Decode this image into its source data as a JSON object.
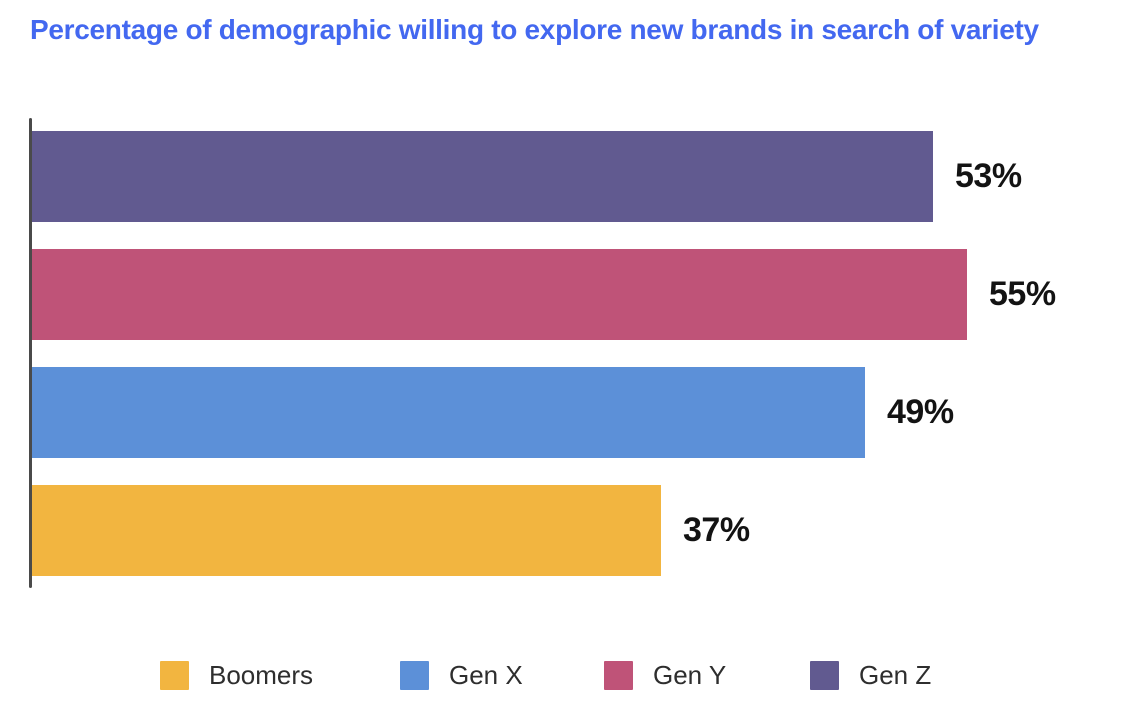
{
  "title": "Percentage of demographic willing to explore new brands in search of variety",
  "colors": {
    "title_blue": "#4368F0",
    "axis_gray": "#4a4a4a",
    "value_label_black": "#131313",
    "legend_text": "#2e2e2e"
  },
  "chart_data": {
    "type": "bar",
    "orientation": "horizontal",
    "title": "Percentage of demographic willing to explore new brands in search of variety",
    "categories": [
      "Gen Z",
      "Gen Y",
      "Gen X",
      "Boomers"
    ],
    "values": [
      53,
      55,
      49,
      37
    ],
    "value_labels": [
      "53%",
      "55%",
      "49%",
      "37%"
    ],
    "bar_colors": [
      "#615A90",
      "#BF5378",
      "#5C90D8",
      "#F2B540"
    ],
    "xlim": [
      0,
      65
    ],
    "grid": false,
    "value_label_position": "right-of-bar",
    "legend": {
      "position": "bottom",
      "entries": [
        {
          "label": "Boomers",
          "color": "#F2B540"
        },
        {
          "label": "Gen X",
          "color": "#5C90D8"
        },
        {
          "label": "Gen Y",
          "color": "#BF5378"
        },
        {
          "label": "Gen Z",
          "color": "#615A90"
        }
      ]
    }
  }
}
